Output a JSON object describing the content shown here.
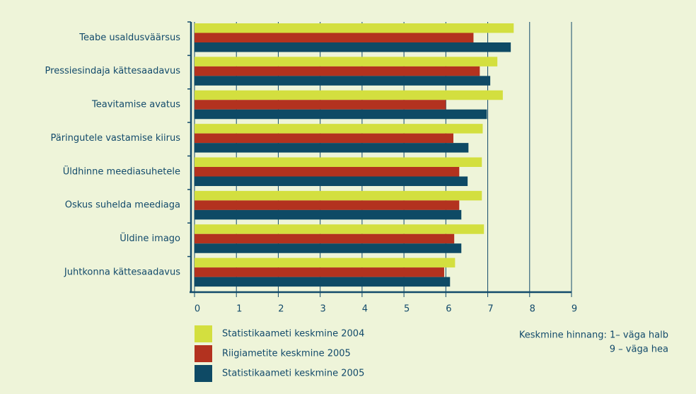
{
  "chart_data": {
    "type": "bar",
    "orientation": "horizontal",
    "categories": [
      "Teabe usaldusväärsus",
      "Pressiesindaja kättesaadavus",
      "Teavitamise avatus",
      "Päringutele vastamise kiirus",
      "Üldhinne meediasuhetele",
      "Oskus suhelda meediaga",
      "Üldine imago",
      "Juhtkonna kättesaadavus"
    ],
    "series": [
      {
        "name": "Statistikaameti keskmine 2004",
        "color": "#d3df3f",
        "values": [
          7.62,
          7.23,
          7.36,
          6.88,
          6.86,
          6.86,
          6.91,
          6.22
        ]
      },
      {
        "name": "Riigiametite keskmine 2005",
        "color": "#b3321f",
        "values": [
          6.66,
          6.81,
          6.0,
          6.18,
          6.32,
          6.32,
          6.2,
          5.96
        ]
      },
      {
        "name": "Statistikaameti keskmine 2005",
        "color": "#0e4a65",
        "values": [
          7.55,
          7.06,
          6.98,
          6.54,
          6.52,
          6.37,
          6.37,
          6.1
        ]
      }
    ],
    "xlim": [
      0,
      9
    ],
    "xticks": [
      0,
      1,
      2,
      3,
      4,
      5,
      6,
      7,
      8,
      9
    ],
    "grid": true,
    "note": [
      "Keskmine hinnang: 1– väga halb",
      "9 – väga hea"
    ]
  }
}
